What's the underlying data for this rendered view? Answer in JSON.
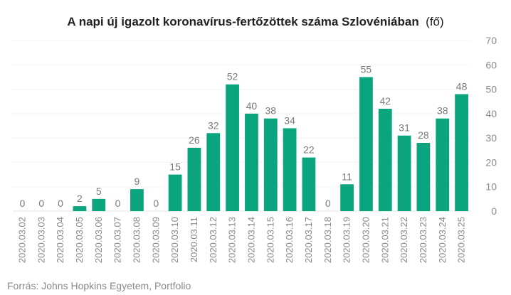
{
  "chart_data": {
    "type": "bar",
    "title": "A napi új igazolt koronavírus-fertőzöttek száma Szlovéniában",
    "title_unit": "(fő)",
    "categories": [
      "2020.03.02",
      "2020.03.03",
      "2020.03.04",
      "2020.03.05",
      "2020.03.06",
      "2020.03.07",
      "2020.03.08",
      "2020.03.09",
      "2020.03.10",
      "2020.03.11",
      "2020.03.12",
      "2020.03.13",
      "2020.03.14",
      "2020.03.15",
      "2020.03.16",
      "2020.03.17",
      "2020.03.18",
      "2020.03.19",
      "2020.03.20",
      "2020.03.21",
      "2020.03.22",
      "2020.03.23",
      "2020.03.24",
      "2020.03.25"
    ],
    "values": [
      0,
      0,
      0,
      2,
      5,
      0,
      9,
      0,
      15,
      26,
      32,
      52,
      40,
      38,
      34,
      22,
      0,
      11,
      55,
      42,
      31,
      28,
      38,
      48
    ],
    "ylim": [
      0,
      70
    ],
    "yticks": [
      0,
      10,
      20,
      30,
      40,
      50,
      60,
      70
    ],
    "y_axis_side": "right",
    "grid": "horizontal-dotted",
    "bar_color": "#0aa57f",
    "source": "Forrás: Johns Hopkins Egyetem, Portfolio"
  }
}
